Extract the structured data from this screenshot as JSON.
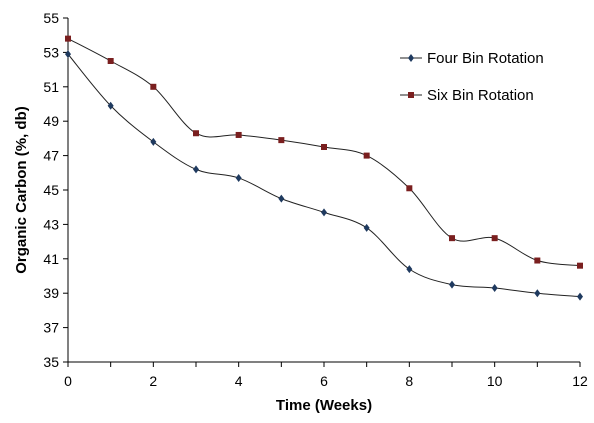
{
  "chart_data": {
    "type": "line",
    "title": "",
    "xlabel": "Time (Weeks)",
    "ylabel": "Organic Carbon (%, db)",
    "xlim": [
      0,
      12
    ],
    "ylim": [
      35,
      55
    ],
    "x_ticks": [
      "0",
      "2",
      "4",
      "6",
      "8",
      "10",
      "12"
    ],
    "y_ticks": [
      "35",
      "37",
      "39",
      "41",
      "43",
      "45",
      "47",
      "49",
      "51",
      "53",
      "55"
    ],
    "grid": false,
    "legend_position": "top-right",
    "x": [
      0,
      1,
      2,
      3,
      4,
      5,
      6,
      7,
      8,
      9,
      10,
      11,
      12
    ],
    "series": [
      {
        "name": "Four Bin Rotation",
        "marker": "diamond",
        "color": "#1f3a5f",
        "values": [
          52.9,
          49.9,
          47.8,
          46.2,
          45.7,
          44.5,
          43.7,
          42.8,
          40.4,
          39.5,
          39.3,
          39.0,
          38.8
        ]
      },
      {
        "name": "Six Bin Rotation",
        "marker": "square",
        "color": "#7a1f1f",
        "values": [
          53.8,
          52.5,
          51.0,
          48.3,
          48.2,
          47.9,
          47.5,
          47.0,
          45.1,
          42.2,
          42.2,
          40.9,
          40.6
        ]
      }
    ]
  }
}
